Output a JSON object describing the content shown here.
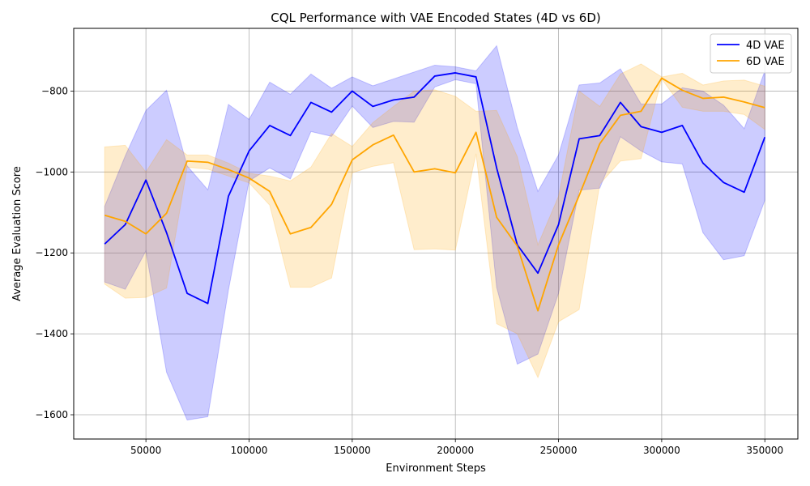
{
  "chart_data": {
    "type": "line",
    "title": "CQL Performance with VAE Encoded States (4D vs 6D)",
    "xlabel": "Environment Steps",
    "ylabel": "Average Evaluation Score",
    "xlim": [
      15000,
      366000
    ],
    "ylim": [
      -1660,
      -645
    ],
    "xticks": [
      50000,
      100000,
      150000,
      200000,
      250000,
      300000,
      350000
    ],
    "xtick_labels": [
      "50000",
      "100000",
      "150000",
      "200000",
      "250000",
      "300000",
      "350000"
    ],
    "yticks": [
      -800,
      -1000,
      -1200,
      -1400,
      -1600
    ],
    "ytick_labels": [
      "−800",
      "−1000",
      "−1200",
      "−1400",
      "−1600"
    ],
    "grid": true,
    "legend": "top-right",
    "x": [
      30000,
      40000,
      50000,
      60000,
      70000,
      80000,
      90000,
      100000,
      110000,
      120000,
      130000,
      140000,
      150000,
      160000,
      170000,
      180000,
      190000,
      200000,
      210000,
      220000,
      230000,
      240000,
      250000,
      260000,
      270000,
      280000,
      290000,
      300000,
      310000,
      320000,
      330000,
      340000,
      350000
    ],
    "series": [
      {
        "name": "4D VAE",
        "color": "#0000ff",
        "band_color": "#0000ff",
        "values": [
          -1178,
          -1130,
          -1020,
          -1150,
          -1300,
          -1325,
          -1060,
          -948,
          -885,
          -910,
          -828,
          -852,
          -800,
          -838,
          -822,
          -815,
          -763,
          -755,
          -765,
          -990,
          -1180,
          -1250,
          -1130,
          -918,
          -910,
          -828,
          -888,
          -902,
          -885,
          -978,
          -1026,
          -1050,
          -914
        ],
        "upper": [
          -1085,
          -960,
          -848,
          -798,
          -985,
          -1044,
          -833,
          -870,
          -778,
          -808,
          -758,
          -793,
          -765,
          -787,
          -770,
          -753,
          -736,
          -740,
          -750,
          -688,
          -890,
          -1048,
          -958,
          -785,
          -780,
          -745,
          -832,
          -832,
          -792,
          -800,
          -835,
          -893,
          -750
        ],
        "lower": [
          -1272,
          -1290,
          -1195,
          -1495,
          -1613,
          -1605,
          -1292,
          -1022,
          -990,
          -1017,
          -900,
          -912,
          -837,
          -890,
          -875,
          -877,
          -790,
          -772,
          -782,
          -1285,
          -1475,
          -1450,
          -1300,
          -1045,
          -1040,
          -913,
          -948,
          -975,
          -980,
          -1150,
          -1217,
          -1207,
          -1070
        ]
      },
      {
        "name": "6D VAE",
        "color": "#ffa500",
        "band_color": "#ffa500",
        "values": [
          -1107,
          -1122,
          -1153,
          -1102,
          -973,
          -976,
          -994,
          -1015,
          -1048,
          -1153,
          -1137,
          -1080,
          -970,
          -933,
          -909,
          -1000,
          -992,
          -1002,
          -902,
          -1112,
          -1183,
          -1343,
          -1180,
          -1058,
          -930,
          -860,
          -850,
          -768,
          -798,
          -818,
          -815,
          -827,
          -841
        ],
        "upper": [
          -938,
          -934,
          -1000,
          -920,
          -958,
          -958,
          -978,
          -1003,
          -1010,
          -1022,
          -988,
          -905,
          -937,
          -878,
          -838,
          -800,
          -797,
          -813,
          -850,
          -848,
          -962,
          -1180,
          -1060,
          -800,
          -838,
          -758,
          -733,
          -765,
          -756,
          -785,
          -775,
          -773,
          -788
        ],
        "lower": [
          -1277,
          -1312,
          -1310,
          -1287,
          -988,
          -993,
          -1010,
          -1027,
          -1082,
          -1285,
          -1285,
          -1262,
          -1002,
          -986,
          -977,
          -1192,
          -1190,
          -1193,
          -955,
          -1375,
          -1400,
          -1508,
          -1370,
          -1340,
          -1030,
          -973,
          -967,
          -770,
          -840,
          -850,
          -850,
          -858,
          -895
        ]
      }
    ]
  }
}
